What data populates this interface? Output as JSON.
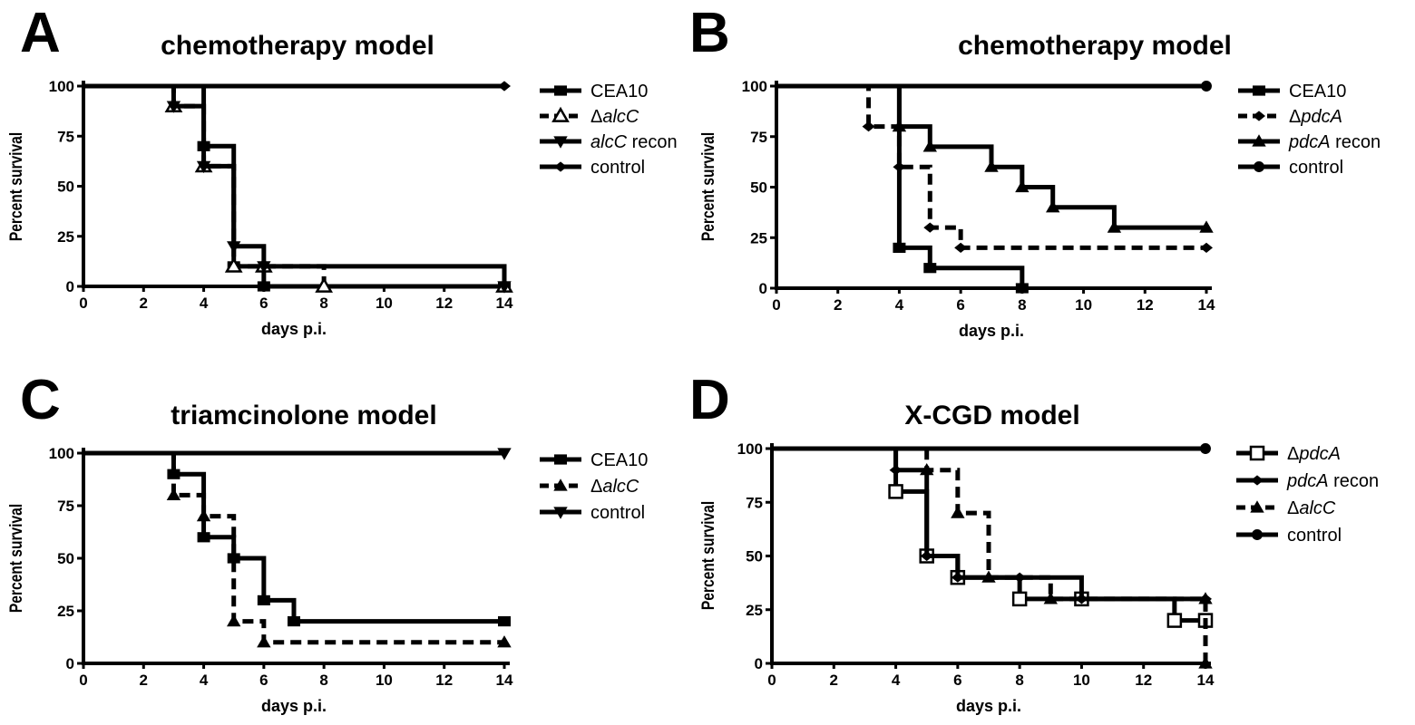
{
  "chart_data": [
    {
      "type": "line",
      "panel_label": "A",
      "title": "chemotherapy model",
      "xlabel": "days p.i.",
      "ylabel": "Percent survival",
      "xlim": [
        0,
        14
      ],
      "ylim": [
        0,
        100
      ],
      "xticks": [
        0,
        2,
        4,
        6,
        8,
        10,
        12,
        14
      ],
      "yticks": [
        0,
        25,
        50,
        75,
        100
      ],
      "legend_position": "right",
      "series": [
        {
          "name": "CEA10",
          "name_italic": "",
          "prefix": "",
          "marker": "square",
          "dash": "solid",
          "x": [
            0,
            4,
            5,
            6,
            14
          ],
          "y": [
            100,
            70,
            10,
            0,
            0
          ]
        },
        {
          "name": "",
          "name_italic": "alcC",
          "prefix": "Δ",
          "marker": "open-triangle",
          "dash": "dashed",
          "x": [
            0,
            3,
            4,
            5,
            6,
            8,
            14
          ],
          "y": [
            100,
            90,
            60,
            10,
            10,
            0,
            0
          ]
        },
        {
          "name": " recon",
          "name_italic": "alcC",
          "prefix": "",
          "marker": "down-triangle",
          "dash": "solid",
          "x": [
            0,
            3,
            4,
            5,
            6,
            14
          ],
          "y": [
            100,
            90,
            60,
            20,
            10,
            0
          ]
        },
        {
          "name": "control",
          "name_italic": "",
          "prefix": "",
          "marker": "diamond",
          "dash": "solid",
          "x": [
            0,
            14
          ],
          "y": [
            100,
            100
          ]
        }
      ]
    },
    {
      "type": "line",
      "panel_label": "B",
      "title": "chemotherapy model",
      "xlabel": "days p.i.",
      "ylabel": "Percent survival",
      "xlim": [
        0,
        14
      ],
      "ylim": [
        0,
        100
      ],
      "xticks": [
        0,
        2,
        4,
        6,
        8,
        10,
        12,
        14
      ],
      "yticks": [
        0,
        25,
        50,
        75,
        100
      ],
      "legend_position": "right",
      "series": [
        {
          "name": "CEA10",
          "name_italic": "",
          "prefix": "",
          "marker": "square",
          "dash": "solid",
          "x": [
            0,
            4,
            5,
            8
          ],
          "y": [
            100,
            20,
            10,
            0
          ]
        },
        {
          "name": "",
          "name_italic": "pdcA",
          "prefix": "Δ",
          "marker": "diamond",
          "dash": "dashed",
          "x": [
            0,
            3,
            4,
            5,
            6,
            14
          ],
          "y": [
            100,
            80,
            60,
            30,
            20,
            20
          ]
        },
        {
          "name": " recon",
          "name_italic": "pdcA",
          "prefix": "",
          "marker": "triangle",
          "dash": "solid",
          "x": [
            0,
            4,
            5,
            7,
            8,
            9,
            11,
            14
          ],
          "y": [
            100,
            80,
            70,
            60,
            50,
            40,
            30,
            30
          ]
        },
        {
          "name": "control",
          "name_italic": "",
          "prefix": "",
          "marker": "circle",
          "dash": "solid",
          "x": [
            0,
            14
          ],
          "y": [
            100,
            100
          ]
        }
      ]
    },
    {
      "type": "line",
      "panel_label": "C",
      "title": "triamcinolone model",
      "xlabel": "days p.i.",
      "ylabel": "Percent survival",
      "xlim": [
        0,
        14
      ],
      "ylim": [
        0,
        100
      ],
      "xticks": [
        0,
        2,
        4,
        6,
        8,
        10,
        12,
        14
      ],
      "yticks": [
        0,
        25,
        50,
        75,
        100
      ],
      "legend_position": "right",
      "series": [
        {
          "name": "CEA10",
          "name_italic": "",
          "prefix": "",
          "marker": "square",
          "dash": "solid",
          "x": [
            0,
            3,
            4,
            5,
            6,
            7,
            14
          ],
          "y": [
            100,
            90,
            60,
            50,
            30,
            20,
            20
          ]
        },
        {
          "name": "",
          "name_italic": "alcC",
          "prefix": "Δ",
          "marker": "triangle",
          "dash": "dashed",
          "x": [
            0,
            3,
            4,
            5,
            6,
            14
          ],
          "y": [
            100,
            80,
            70,
            20,
            10,
            10
          ]
        },
        {
          "name": "control",
          "name_italic": "",
          "prefix": "",
          "marker": "down-triangle",
          "dash": "solid",
          "x": [
            0,
            14
          ],
          "y": [
            100,
            100
          ]
        }
      ]
    },
    {
      "type": "line",
      "panel_label": "D",
      "title": "X-CGD model",
      "xlabel": "days p.i.",
      "ylabel": "Percent survival",
      "xlim": [
        0,
        14
      ],
      "ylim": [
        0,
        100
      ],
      "xticks": [
        0,
        2,
        4,
        6,
        8,
        10,
        12,
        14
      ],
      "yticks": [
        0,
        25,
        50,
        75,
        100
      ],
      "legend_position": "right",
      "series": [
        {
          "name": "",
          "name_italic": "pdcA",
          "prefix": "Δ",
          "marker": "open-square",
          "dash": "solid",
          "x": [
            0,
            4,
            5,
            6,
            8,
            10,
            13,
            14
          ],
          "y": [
            100,
            80,
            50,
            40,
            30,
            30,
            20,
            20
          ]
        },
        {
          "name": " recon",
          "name_italic": "pdcA",
          "prefix": "",
          "marker": "diamond",
          "dash": "solid",
          "x": [
            0,
            4,
            5,
            6,
            8,
            10,
            14
          ],
          "y": [
            100,
            90,
            50,
            40,
            40,
            30,
            30
          ]
        },
        {
          "name": "",
          "name_italic": "alcC",
          "prefix": "Δ",
          "marker": "triangle",
          "dash": "dashed",
          "x": [
            0,
            5,
            6,
            7,
            9,
            14,
            14
          ],
          "y": [
            100,
            90,
            70,
            40,
            30,
            30,
            0
          ]
        },
        {
          "name": "control",
          "name_italic": "",
          "prefix": "",
          "marker": "circle",
          "dash": "solid",
          "x": [
            0,
            14
          ],
          "y": [
            100,
            100
          ]
        }
      ]
    }
  ]
}
